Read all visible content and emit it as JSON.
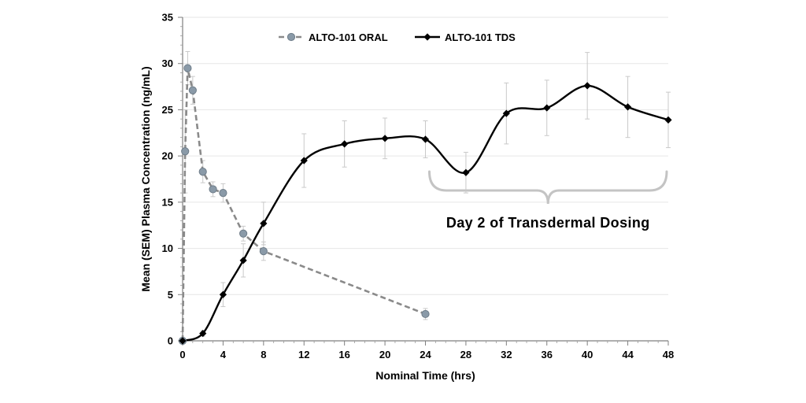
{
  "chart_data": {
    "type": "line",
    "title": "",
    "xlabel": "Nominal Time (hrs)",
    "ylabel": "Mean (SEM) Plasma Concentration (ng/mL)",
    "xlim": [
      0,
      48
    ],
    "ylim": [
      0,
      35
    ],
    "x_ticks": [
      0,
      4,
      8,
      12,
      16,
      20,
      24,
      28,
      32,
      36,
      40,
      44,
      48
    ],
    "y_ticks": [
      0,
      5,
      10,
      15,
      20,
      25,
      30,
      35
    ],
    "grid": "horizontal",
    "legend_position": "top",
    "series": [
      {
        "name": "ALTO-101 ORAL",
        "color": "#8a9aa8",
        "marker": "circle",
        "line_style": "dashed",
        "x": [
          0,
          0.25,
          0.5,
          1,
          2,
          3,
          4,
          6,
          8,
          24
        ],
        "y": [
          0,
          20.5,
          29.5,
          27.1,
          18.3,
          16.4,
          16.0,
          11.6,
          9.7,
          2.9
        ],
        "sem": [
          0,
          4.5,
          1.8,
          1.5,
          1.2,
          0.8,
          1.0,
          0.8,
          1.0,
          0.6
        ]
      },
      {
        "name": "ALTO-101 TDS",
        "color": "#000000",
        "marker": "diamond",
        "line_style": "solid",
        "x": [
          0,
          2,
          4,
          6,
          8,
          12,
          16,
          20,
          24,
          28,
          32,
          36,
          40,
          44,
          48
        ],
        "y": [
          0,
          0.8,
          5.0,
          8.7,
          12.7,
          19.5,
          21.3,
          21.9,
          21.8,
          18.2,
          24.6,
          25.2,
          27.6,
          25.3,
          23.9
        ],
        "sem": [
          0,
          0.3,
          1.3,
          1.8,
          2.3,
          2.9,
          2.5,
          2.2,
          2.0,
          2.2,
          3.3,
          3.0,
          3.6,
          3.3,
          3.0
        ]
      }
    ],
    "annotations": [
      {
        "text": "Day 2 of Transdermal Dosing",
        "x_range": [
          24,
          48
        ]
      }
    ]
  }
}
